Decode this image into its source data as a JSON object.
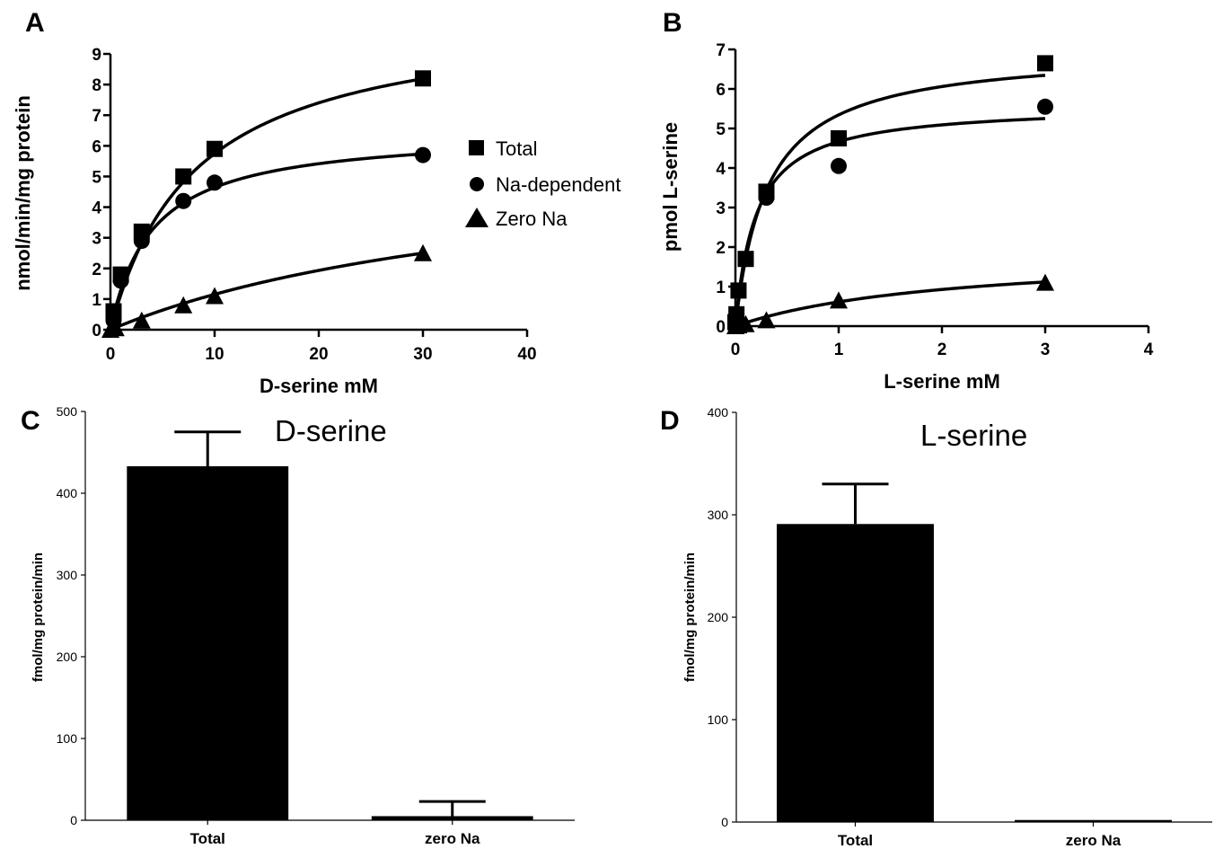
{
  "chart_data": [
    {
      "panel": "A",
      "type": "scatter",
      "xlabel": "D-serine mM",
      "ylabel": "nmol/min/mg protein",
      "xlim": [
        0,
        40
      ],
      "ylim": [
        0,
        9
      ],
      "xticks": [
        0,
        10,
        20,
        30,
        40
      ],
      "yticks": [
        0,
        1,
        2,
        3,
        4,
        5,
        6,
        7,
        8,
        9
      ],
      "legend_position": "right",
      "series": [
        {
          "name": "Total",
          "marker": "square",
          "x": [
            0.3,
            1,
            3,
            7,
            10,
            30
          ],
          "y": [
            0.6,
            1.8,
            3.2,
            5.0,
            5.9,
            8.2
          ],
          "fit": {
            "model": "michaelis-menten",
            "vmax": 10.4,
            "km": 8.1
          }
        },
        {
          "name": "Na-dependent",
          "marker": "circle",
          "x": [
            0.3,
            1,
            3,
            7,
            10,
            30
          ],
          "y": [
            0.3,
            1.6,
            2.9,
            4.2,
            4.8,
            5.7
          ],
          "fit": {
            "model": "michaelis-menten",
            "vmax": 6.5,
            "km": 4.0
          }
        },
        {
          "name": "Zero Na",
          "marker": "triangle",
          "x": [
            0,
            0.5,
            3,
            7,
            10,
            30
          ],
          "y": [
            0,
            0.05,
            0.3,
            0.8,
            1.1,
            2.5
          ],
          "fit": {
            "model": "michaelis-menten",
            "vmax": 6.0,
            "km": 42
          }
        }
      ]
    },
    {
      "panel": "B",
      "type": "scatter",
      "xlabel": "L-serine mM",
      "ylabel": "pmol L-serine",
      "xlim": [
        0,
        4
      ],
      "ylim": [
        0,
        7
      ],
      "xticks": [
        0,
        1,
        2,
        3,
        4
      ],
      "yticks": [
        0,
        1,
        2,
        3,
        4,
        5,
        6,
        7
      ],
      "series": [
        {
          "marker": "square",
          "x": [
            0,
            0.01,
            0.03,
            0.1,
            0.3,
            1,
            3
          ],
          "y": [
            0.1,
            0.3,
            0.9,
            1.7,
            3.4,
            4.75,
            6.65
          ],
          "fit": {
            "model": "michaelis-menten",
            "vmax": 7.0,
            "km": 0.31
          }
        },
        {
          "marker": "circle",
          "x": [
            0,
            0.1,
            0.3,
            1,
            3
          ],
          "y": [
            0.05,
            1.7,
            3.25,
            4.05,
            5.55
          ],
          "fit": {
            "model": "michaelis-menten",
            "vmax": 5.6,
            "km": 0.2
          }
        },
        {
          "marker": "triangle",
          "x": [
            0,
            0.03,
            0.1,
            0.3,
            1,
            3
          ],
          "y": [
            0,
            0.02,
            0.05,
            0.15,
            0.65,
            1.1
          ],
          "fit": {
            "model": "michaelis-menten",
            "vmax": 1.9,
            "km": 2.1
          }
        }
      ]
    },
    {
      "panel": "C",
      "type": "bar",
      "title": "D-serine",
      "ylabel": "fmol/mg protein/min",
      "ylim": [
        0,
        500
      ],
      "yticks": [
        0,
        100,
        200,
        300,
        400,
        500
      ],
      "categories": [
        "Total",
        "zero Na"
      ],
      "values": [
        433,
        5
      ],
      "errors": [
        42,
        18
      ]
    },
    {
      "panel": "D",
      "type": "bar",
      "title": "L-serine",
      "ylabel": "fmol/mg protein/min",
      "ylim": [
        0,
        400
      ],
      "yticks": [
        0,
        100,
        200,
        300,
        400
      ],
      "categories": [
        "Total",
        "zero Na"
      ],
      "values": [
        291,
        2
      ],
      "errors": [
        39,
        0
      ]
    }
  ]
}
